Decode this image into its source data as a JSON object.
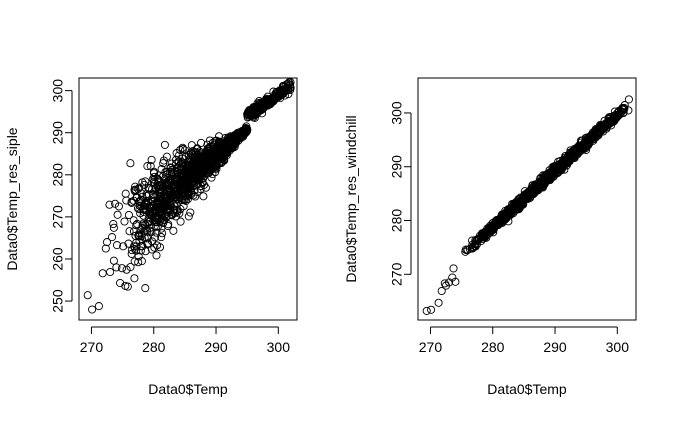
{
  "chart_data": [
    {
      "type": "scatter",
      "title": "",
      "xlabel": "Data0$Temp",
      "ylabel": "Data0$Temp_res_siple",
      "xlim": [
        268,
        303
      ],
      "ylim": [
        245.5,
        303
      ],
      "xticks": [
        270,
        280,
        290,
        300
      ],
      "yticks": [
        250,
        260,
        270,
        280,
        290,
        300
      ],
      "xtick_labels": [
        "270",
        "280",
        "290",
        "300"
      ],
      "ytick_labels": [
        "250",
        "260",
        "270",
        "280",
        "290",
        "300"
      ],
      "grid": false,
      "marker": "open-circle",
      "points": [
        [
          269.4,
          251.4
        ],
        [
          270.1,
          248.0
        ],
        [
          271.2,
          248.8
        ],
        [
          271.8,
          256.6
        ],
        [
          272.3,
          262.5
        ],
        [
          272.5,
          264.0
        ],
        [
          273.0,
          256.9
        ],
        [
          273.3,
          265.2
        ],
        [
          273.5,
          268.3
        ],
        [
          273.6,
          259.6
        ],
        [
          273.6,
          267.4
        ],
        [
          274.0,
          258.0
        ],
        [
          274.1,
          263.3
        ],
        [
          274.2,
          270.5
        ],
        [
          274.4,
          272.5
        ],
        [
          274.6,
          254.3
        ],
        [
          274.9,
          257.8
        ],
        [
          275.1,
          263.0
        ],
        [
          275.3,
          268.9
        ],
        [
          275.6,
          273.9
        ],
        [
          276.1,
          266.6
        ],
        [
          276.5,
          262.1
        ],
        [
          276.9,
          255.4
        ],
        [
          277.3,
          274.7
        ],
        [
          277.6,
          265.7
        ],
        [
          278.1,
          259.5
        ],
        [
          278.5,
          277.6
        ],
        [
          279.0,
          263.5
        ],
        [
          279.4,
          271.3
        ],
        [
          280.1,
          279.5
        ],
        [
          272.9,
          272.9
        ],
        [
          273.8,
          273.1
        ],
        [
          275.5,
          275.5
        ],
        [
          281.0,
          262.8
        ]
      ]
    },
    {
      "type": "scatter",
      "title": "",
      "xlabel": "Data0$Temp",
      "ylabel": "Data0$Temp_res_windchill",
      "xlim": [
        268,
        303
      ],
      "ylim": [
        261.5,
        306.5
      ],
      "xticks": [
        270,
        280,
        290,
        300
      ],
      "yticks": [
        270,
        280,
        290,
        300
      ],
      "xtick_labels": [
        "270",
        "280",
        "290",
        "300"
      ],
      "ytick_labels": [
        "270",
        "280",
        "290",
        "300"
      ],
      "grid": false,
      "marker": "open-circle",
      "points": [
        [
          269.4,
          263.2
        ],
        [
          270.1,
          263.4
        ],
        [
          271.3,
          264.7
        ],
        [
          271.8,
          266.9
        ],
        [
          272.3,
          268.3
        ],
        [
          272.5,
          267.9
        ],
        [
          273.0,
          268.5
        ],
        [
          273.5,
          269.4
        ],
        [
          273.7,
          271.1
        ],
        [
          274.0,
          268.6
        ]
      ]
    }
  ]
}
